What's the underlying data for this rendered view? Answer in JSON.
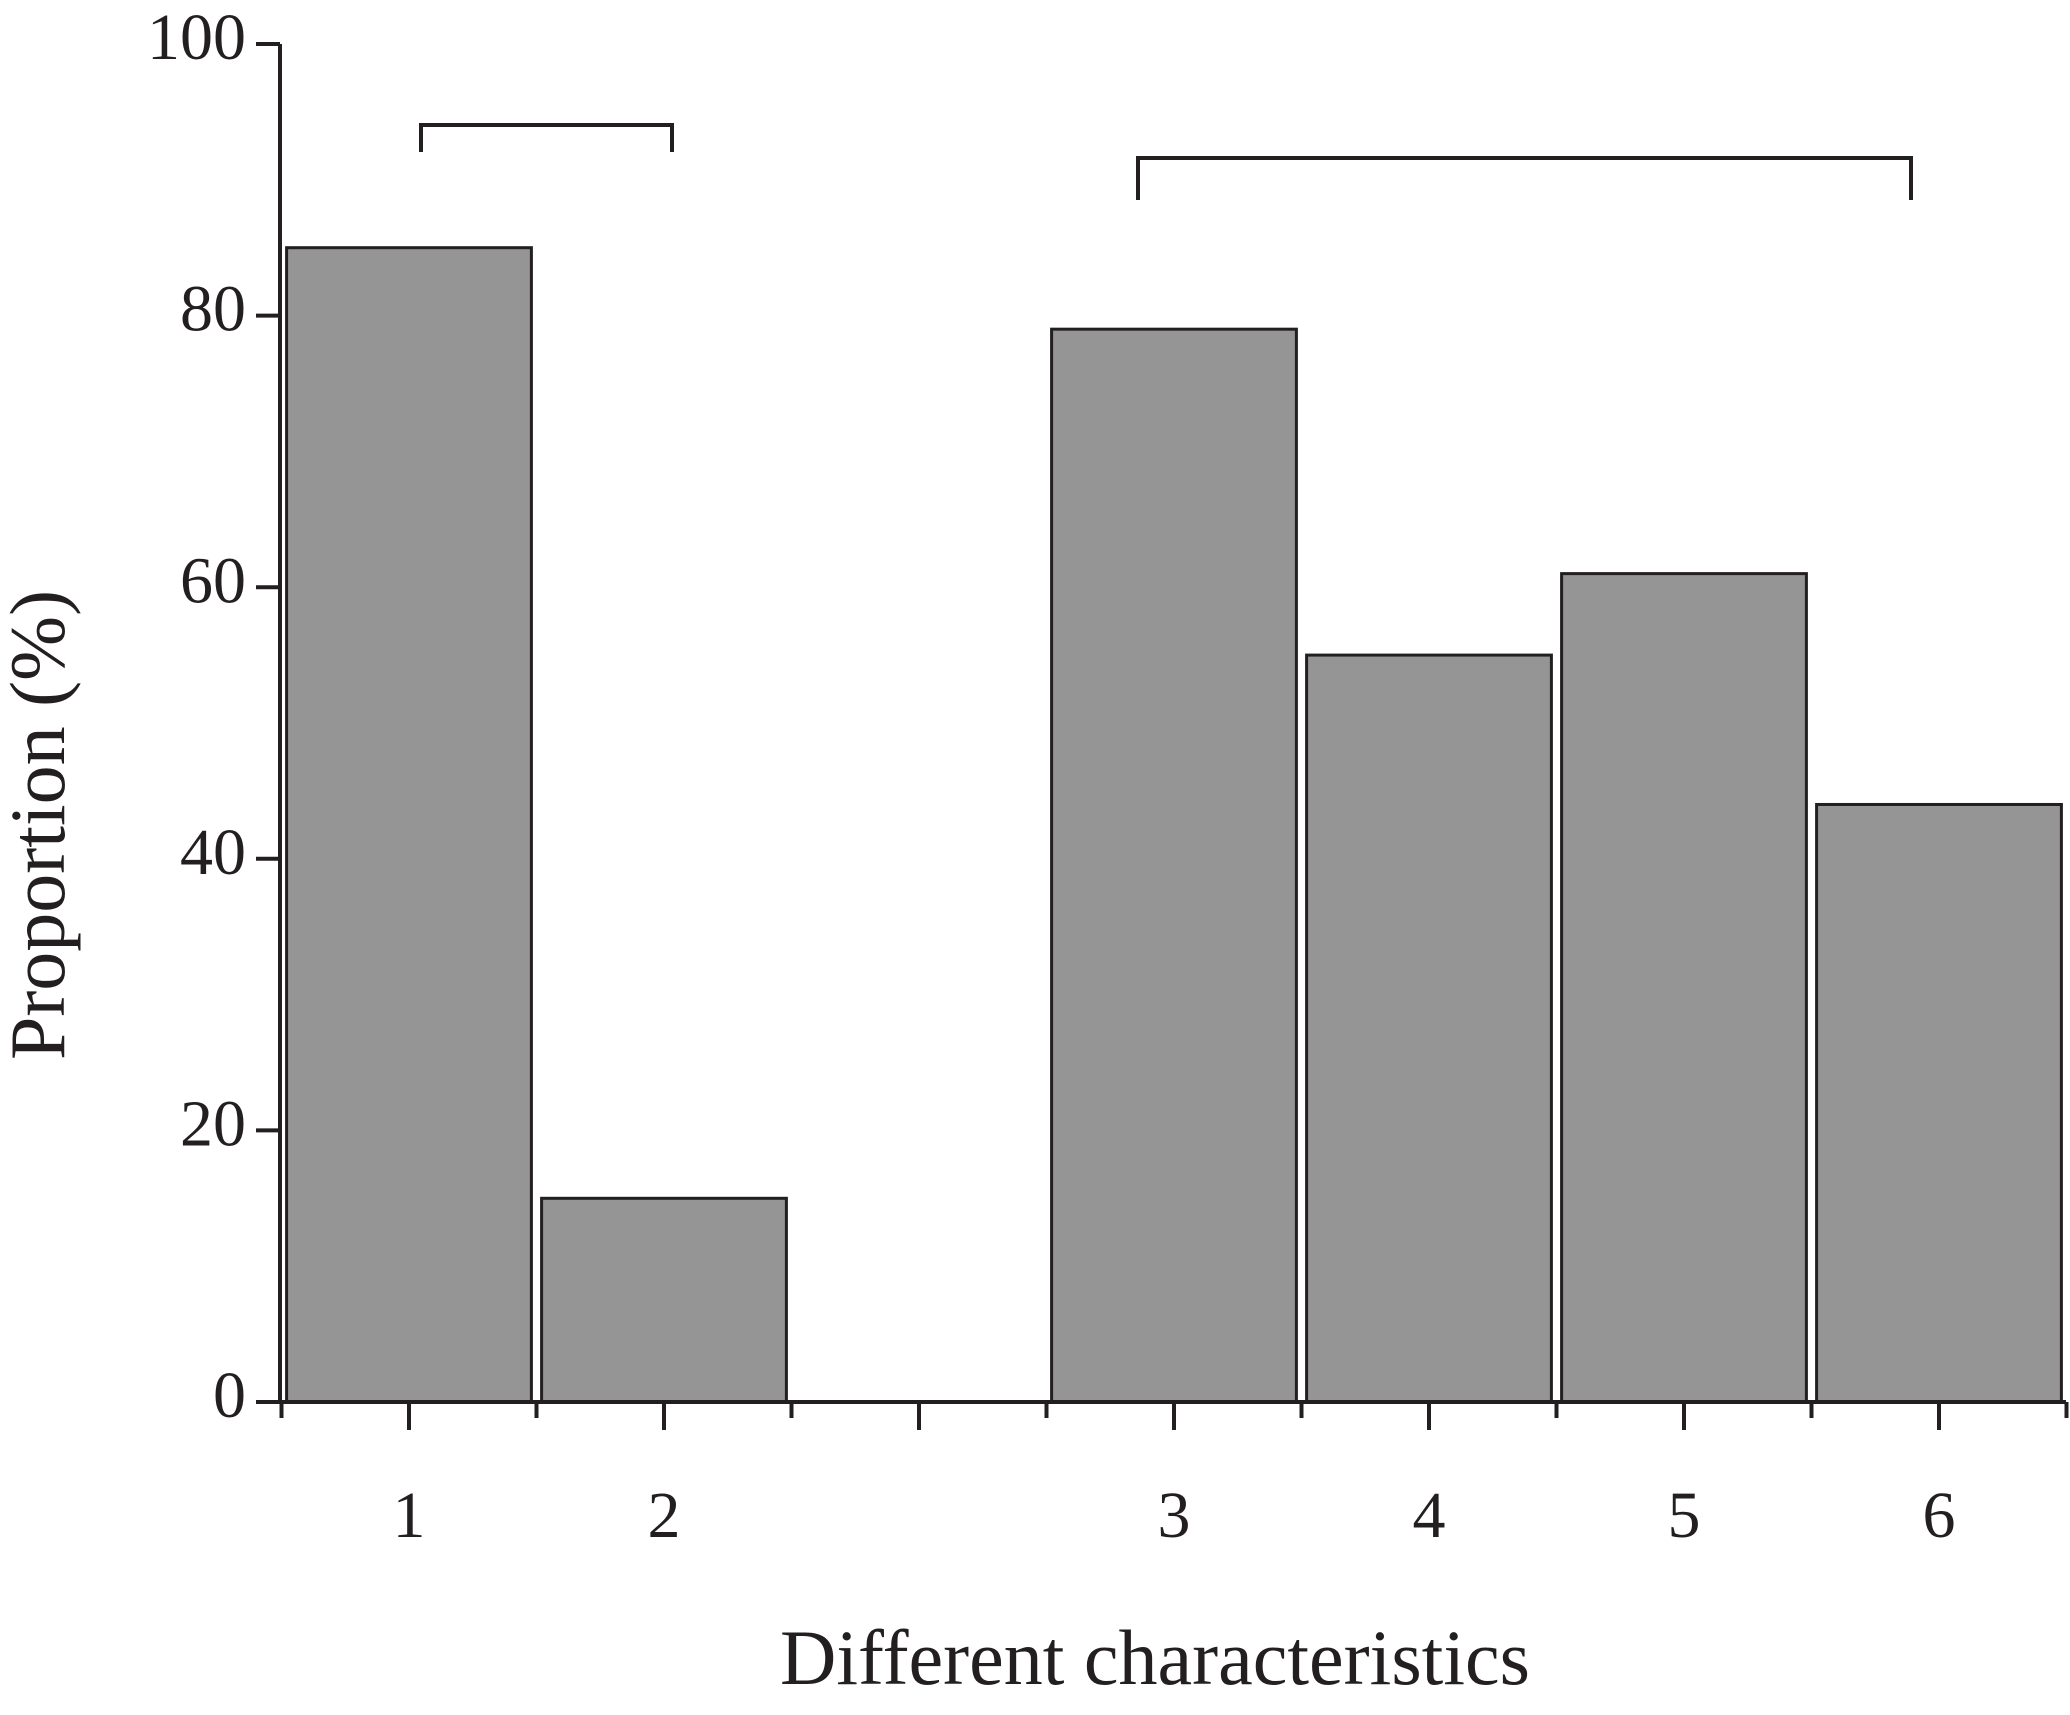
{
  "chart_data": {
    "type": "bar",
    "x_label": "Different characteristics",
    "y_label": "Proportion (%)",
    "categories": [
      "1",
      "2",
      null,
      "3",
      "4",
      "5",
      "6"
    ],
    "values": [
      85,
      15,
      null,
      79,
      55,
      61,
      44
    ],
    "color": "#959595",
    "ylim": [
      0,
      100
    ],
    "yticks": [
      0,
      20,
      40,
      60,
      80,
      100
    ]
  }
}
